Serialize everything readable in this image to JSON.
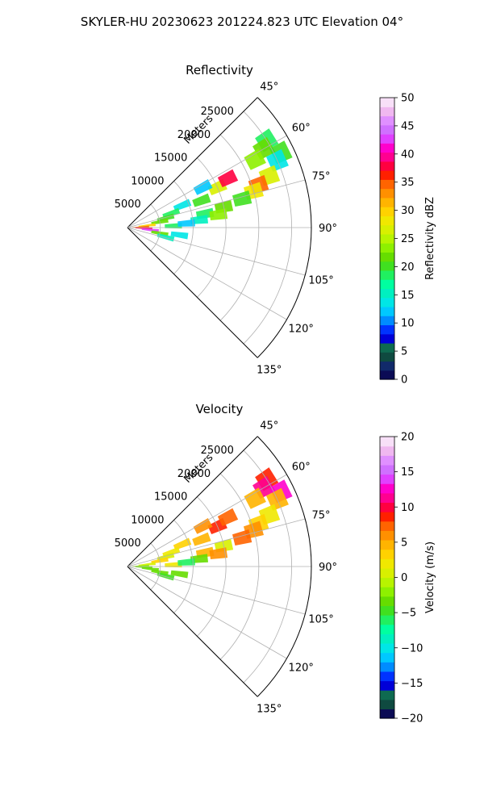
{
  "figure": {
    "title": "SKYLER-HU  20230623  201224.823 UTC Elevation 04°"
  },
  "chart_data": [
    {
      "type": "heatmap",
      "projection": "polar-sector",
      "title": "Reflectivity",
      "radial_label": "Meters",
      "range_rings": [
        "5000",
        "10000",
        "15000",
        "20000",
        "25000"
      ],
      "angle_ticks": [
        "45°",
        "60°",
        "75°",
        "90°",
        "105°",
        "120°",
        "135°"
      ],
      "angle_range_deg": [
        45,
        135
      ],
      "max_range_m": 28000,
      "grid": true,
      "colorbar": {
        "label": "Reflectivity dBZ",
        "min": 0,
        "max": 50,
        "ticks": [
          "0",
          "5",
          "10",
          "15",
          "20",
          "25",
          "30",
          "35",
          "40",
          "45",
          "50"
        ],
        "colors": [
          "#0b0b55",
          "#112a6a",
          "#0f4a40",
          "#0e6a50",
          "#0000d8",
          "#0033ff",
          "#008cff",
          "#00c8ff",
          "#00e6e6",
          "#00f0c0",
          "#00ffa0",
          "#20f060",
          "#40e020",
          "#66dd00",
          "#8ef000",
          "#b8f400",
          "#d8f000",
          "#f0e800",
          "#ffd200",
          "#ffb400",
          "#ff9000",
          "#ff6400",
          "#ff2000",
          "#ff0040",
          "#ff0090",
          "#ff00cc",
          "#e040ff",
          "#d070ff",
          "#e090ff",
          "#f0b8f0",
          "#f8e0f8"
        ]
      },
      "cells": [
        {
          "angle": 58,
          "range": 25000,
          "value": 18
        },
        {
          "angle": 60,
          "range": 24000,
          "value": 22
        },
        {
          "angle": 62,
          "range": 22000,
          "value": 24
        },
        {
          "angle": 64,
          "range": 26000,
          "value": 20
        },
        {
          "angle": 66,
          "range": 25000,
          "value": 14
        },
        {
          "angle": 70,
          "range": 23000,
          "value": 26
        },
        {
          "angle": 72,
          "range": 21000,
          "value": 34
        },
        {
          "angle": 74,
          "range": 20000,
          "value": 28
        },
        {
          "angle": 76,
          "range": 18000,
          "value": 20
        },
        {
          "angle": 78,
          "range": 15000,
          "value": 22
        },
        {
          "angle": 80,
          "range": 12000,
          "value": 18
        },
        {
          "angle": 82,
          "range": 14000,
          "value": 24
        },
        {
          "angle": 84,
          "range": 11000,
          "value": 16
        },
        {
          "angle": 70,
          "range": 12000,
          "value": 20
        },
        {
          "angle": 66,
          "range": 15000,
          "value": 26
        },
        {
          "angle": 64,
          "range": 17000,
          "value": 38
        },
        {
          "angle": 62,
          "range": 13000,
          "value": 12
        },
        {
          "angle": 68,
          "range": 9000,
          "value": 14
        },
        {
          "angle": 72,
          "range": 7000,
          "value": 18
        },
        {
          "angle": 76,
          "range": 6000,
          "value": 20
        },
        {
          "angle": 80,
          "range": 5000,
          "value": 22
        },
        {
          "angle": 84,
          "range": 3000,
          "value": 30
        },
        {
          "angle": 88,
          "range": 2000,
          "value": 34
        },
        {
          "angle": 92,
          "range": 2500,
          "value": 38
        },
        {
          "angle": 96,
          "range": 3500,
          "value": 42
        },
        {
          "angle": 100,
          "range": 5000,
          "value": 22
        },
        {
          "angle": 104,
          "range": 6000,
          "value": 16
        },
        {
          "angle": 98,
          "range": 8000,
          "value": 14
        },
        {
          "angle": 88,
          "range": 7000,
          "value": 18
        },
        {
          "angle": 86,
          "range": 9000,
          "value": 12
        }
      ]
    },
    {
      "type": "heatmap",
      "projection": "polar-sector",
      "title": "Velocity",
      "radial_label": "Meters",
      "range_rings": [
        "5000",
        "10000",
        "15000",
        "20000",
        "25000"
      ],
      "angle_ticks": [
        "45°",
        "60°",
        "75°",
        "90°",
        "105°",
        "120°",
        "135°"
      ],
      "angle_range_deg": [
        45,
        135
      ],
      "max_range_m": 28000,
      "grid": true,
      "colorbar": {
        "label": "Velocity (m/s)",
        "min": -20,
        "max": 20,
        "ticks": [
          "-20",
          "-15",
          "-10",
          "-5",
          "0",
          "5",
          "10",
          "15",
          "20"
        ],
        "colors": [
          "#0b0b55",
          "#0f4a40",
          "#0e6a50",
          "#0000d8",
          "#0033ff",
          "#008cff",
          "#00c8ff",
          "#00e6e6",
          "#00f0c0",
          "#00ffa0",
          "#20f060",
          "#40e020",
          "#66dd00",
          "#8ef000",
          "#b8f400",
          "#d8f000",
          "#f0e800",
          "#ffd200",
          "#ffb400",
          "#ff9000",
          "#ff6400",
          "#ff2000",
          "#ff0040",
          "#ff0090",
          "#ff00cc",
          "#e040ff",
          "#d070ff",
          "#e090ff",
          "#f0b8f0",
          "#f8e0f8"
        ]
      },
      "cells": [
        {
          "angle": 58,
          "range": 25000,
          "value": 9
        },
        {
          "angle": 60,
          "range": 24000,
          "value": 11
        },
        {
          "angle": 62,
          "range": 22000,
          "value": 4
        },
        {
          "angle": 64,
          "range": 26000,
          "value": 13
        },
        {
          "angle": 66,
          "range": 25000,
          "value": 5
        },
        {
          "angle": 70,
          "range": 23000,
          "value": 2
        },
        {
          "angle": 72,
          "range": 21000,
          "value": 3
        },
        {
          "angle": 74,
          "range": 20000,
          "value": 6
        },
        {
          "angle": 76,
          "range": 18000,
          "value": 7
        },
        {
          "angle": 78,
          "range": 15000,
          "value": 1
        },
        {
          "angle": 80,
          "range": 12000,
          "value": 4
        },
        {
          "angle": 82,
          "range": 14000,
          "value": 6
        },
        {
          "angle": 84,
          "range": 11000,
          "value": -3
        },
        {
          "angle": 70,
          "range": 12000,
          "value": 5
        },
        {
          "angle": 66,
          "range": 15000,
          "value": 8
        },
        {
          "angle": 64,
          "range": 17000,
          "value": 7
        },
        {
          "angle": 62,
          "range": 13000,
          "value": 6
        },
        {
          "angle": 68,
          "range": 9000,
          "value": 3
        },
        {
          "angle": 72,
          "range": 7000,
          "value": 2
        },
        {
          "angle": 76,
          "range": 6000,
          "value": 1
        },
        {
          "angle": 80,
          "range": 5000,
          "value": 3
        },
        {
          "angle": 84,
          "range": 3000,
          "value": 0
        },
        {
          "angle": 88,
          "range": 2000,
          "value": -2
        },
        {
          "angle": 92,
          "range": 2500,
          "value": -4
        },
        {
          "angle": 96,
          "range": 3500,
          "value": -3
        },
        {
          "angle": 100,
          "range": 5000,
          "value": -4
        },
        {
          "angle": 104,
          "range": 6000,
          "value": -5
        },
        {
          "angle": 98,
          "range": 8000,
          "value": -3
        },
        {
          "angle": 88,
          "range": 7000,
          "value": 2
        },
        {
          "angle": 86,
          "range": 9000,
          "value": -6
        }
      ]
    }
  ]
}
